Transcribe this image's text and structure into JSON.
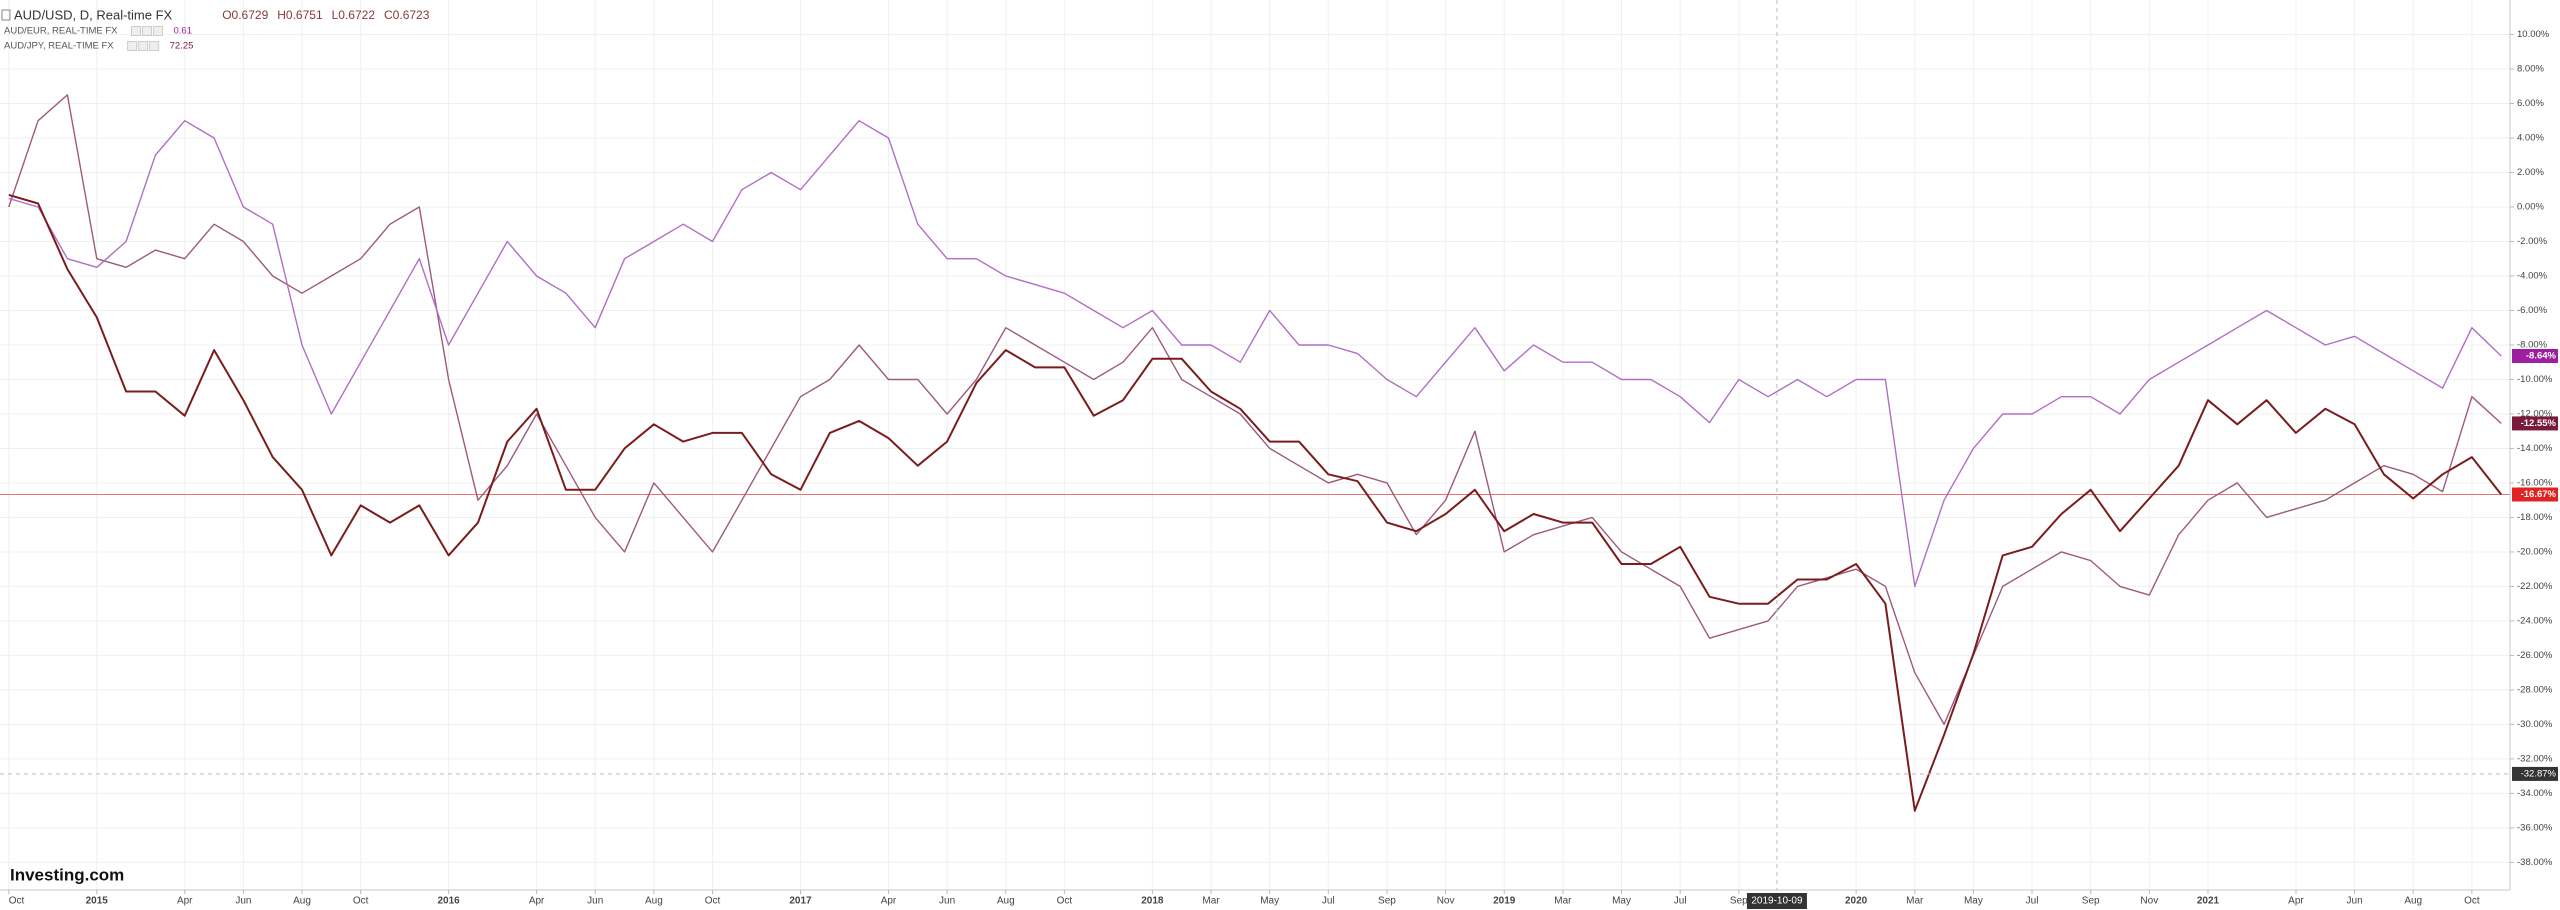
{
  "chart_data": {
    "type": "line",
    "title": "AUD/USD, D, Real-time FX",
    "ohlc": [
      "O0.6729",
      "H0.6751",
      "L0.6722",
      "C0.6723"
    ],
    "brand": "Investing.com",
    "grid": true,
    "xlim": [
      -0.3,
      85.3
    ],
    "ylim": [
      -39.6,
      12
    ],
    "x": [
      0,
      1,
      2,
      3,
      4,
      5,
      6,
      7,
      8,
      9,
      10,
      11,
      12,
      13,
      14,
      15,
      16,
      17,
      18,
      19,
      20,
      21,
      22,
      23,
      24,
      25,
      26,
      27,
      28,
      29,
      30,
      31,
      32,
      33,
      34,
      35,
      36,
      37,
      38,
      39,
      40,
      41,
      42,
      43,
      44,
      45,
      46,
      47,
      48,
      49,
      50,
      51,
      52,
      53,
      54,
      55,
      56,
      57,
      58,
      59,
      60,
      61,
      62,
      63,
      64,
      65,
      66,
      67,
      68,
      69,
      70,
      71,
      72,
      73,
      74,
      75,
      76,
      77,
      78,
      79,
      80,
      81,
      82,
      83,
      84,
      85
    ],
    "xticks": [
      {
        "value": 0,
        "label": "Oct"
      },
      {
        "value": 3,
        "label": "2015"
      },
      {
        "value": 6,
        "label": "Apr"
      },
      {
        "value": 8,
        "label": "Jun"
      },
      {
        "value": 10,
        "label": "Aug"
      },
      {
        "value": 12,
        "label": "Oct"
      },
      {
        "value": 15,
        "label": "2016"
      },
      {
        "value": 18,
        "label": "Apr"
      },
      {
        "value": 20,
        "label": "Jun"
      },
      {
        "value": 22,
        "label": "Aug"
      },
      {
        "value": 24,
        "label": "Oct"
      },
      {
        "value": 27,
        "label": "2017"
      },
      {
        "value": 30,
        "label": "Apr"
      },
      {
        "value": 32,
        "label": "Jun"
      },
      {
        "value": 34,
        "label": "Aug"
      },
      {
        "value": 36,
        "label": "Oct"
      },
      {
        "value": 39,
        "label": "2018"
      },
      {
        "value": 41,
        "label": "Mar"
      },
      {
        "value": 43,
        "label": "May"
      },
      {
        "value": 45,
        "label": "Jul"
      },
      {
        "value": 47,
        "label": "Sep"
      },
      {
        "value": 49,
        "label": "Nov"
      },
      {
        "value": 51,
        "label": "2019"
      },
      {
        "value": 53,
        "label": "Mar"
      },
      {
        "value": 55,
        "label": "May"
      },
      {
        "value": 57,
        "label": "Jul"
      },
      {
        "value": 59,
        "label": "Sep"
      },
      {
        "value": 63,
        "label": "2020"
      },
      {
        "value": 65,
        "label": "Mar"
      },
      {
        "value": 67,
        "label": "May"
      },
      {
        "value": 69,
        "label": "Jul"
      },
      {
        "value": 71,
        "label": "Sep"
      },
      {
        "value": 73,
        "label": "Nov"
      },
      {
        "value": 75,
        "label": "2021"
      },
      {
        "value": 78,
        "label": "Apr"
      },
      {
        "value": 80,
        "label": "Jun"
      },
      {
        "value": 82,
        "label": "Aug"
      },
      {
        "value": 84,
        "label": "Oct"
      }
    ],
    "yticks": [
      {
        "value": 10,
        "label": "10.00%"
      },
      {
        "value": 8,
        "label": "8.00%"
      },
      {
        "value": 6,
        "label": "6.00%"
      },
      {
        "value": 4,
        "label": "4.00%"
      },
      {
        "value": 2,
        "label": "2.00%"
      },
      {
        "value": 0,
        "label": "0.00%"
      },
      {
        "value": -2,
        "label": "-2.00%"
      },
      {
        "value": -4,
        "label": "-4.00%"
      },
      {
        "value": -6,
        "label": "-6.00%"
      },
      {
        "value": -8,
        "label": "-8.00%"
      },
      {
        "value": -10,
        "label": "-10.00%"
      },
      {
        "value": -12,
        "label": "-12.00%"
      },
      {
        "value": -14,
        "label": "-14.00%"
      },
      {
        "value": -16,
        "label": "-16.00%"
      },
      {
        "value": -18,
        "label": "-18.00%"
      },
      {
        "value": -20,
        "label": "-20.00%"
      },
      {
        "value": -22,
        "label": "-22.00%"
      },
      {
        "value": -24,
        "label": "-24.00%"
      },
      {
        "value": -26,
        "label": "-26.00%"
      },
      {
        "value": -28,
        "label": "-28.00%"
      },
      {
        "value": -30,
        "label": "-30.00%"
      },
      {
        "value": -32,
        "label": "-32.00%"
      },
      {
        "value": -34,
        "label": "-34.00%"
      },
      {
        "value": -36,
        "label": "-36.00%"
      },
      {
        "value": -38,
        "label": "-38.00%"
      }
    ],
    "crosshair": {
      "x": {
        "value": 60.3,
        "label": "2019-10-09"
      },
      "y": {
        "value": -32.87,
        "label": "-32.87%"
      }
    },
    "series": [
      {
        "name": "AUD/USD, D, Real-time FX",
        "color": "#7b1c1c",
        "label_color": "#e02424",
        "last_label": "-16.67%",
        "values": [
          0.7,
          0.2,
          -3.6,
          -6.4,
          -10.7,
          -10.7,
          -12.1,
          -8.3,
          -11.2,
          -14.5,
          -16.4,
          -20.2,
          -17.3,
          -18.3,
          -17.3,
          -20.2,
          -18.3,
          -13.6,
          -11.7,
          -16.4,
          -16.4,
          -14.0,
          -12.6,
          -13.6,
          -13.1,
          -13.1,
          -15.5,
          -16.4,
          -13.1,
          -12.4,
          -13.4,
          -15.0,
          -13.6,
          -10.2,
          -8.3,
          -9.3,
          -9.3,
          -12.1,
          -11.2,
          -8.8,
          -8.8,
          -10.7,
          -11.7,
          -13.6,
          -13.6,
          -15.5,
          -15.9,
          -18.3,
          -18.8,
          -17.8,
          -16.4,
          -18.8,
          -17.8,
          -18.3,
          -18.3,
          -20.7,
          -20.7,
          -19.7,
          -22.6,
          -23.0,
          -23.0,
          -21.6,
          -21.6,
          -20.7,
          -23.0,
          -35.0,
          -30.6,
          -25.9,
          -20.2,
          -19.7,
          -17.8,
          -16.4,
          -18.8,
          -16.9,
          -15.0,
          -11.2,
          -12.6,
          -11.2,
          -13.1,
          -11.7,
          -12.6,
          -15.5,
          -16.9,
          -15.5,
          -14.5,
          -16.67
        ]
      },
      {
        "name": "AUD/EUR, REAL-TIME FX",
        "quote": "0.61",
        "color": "#b06fc4",
        "label_color": "#9b1fa0",
        "last_label": "-8.64%",
        "values": [
          0.5,
          0,
          -3,
          -3.5,
          -2,
          3,
          5,
          4,
          0,
          -1,
          -8,
          -12,
          -9,
          -6,
          -3,
          -8,
          -5,
          -2,
          -4,
          -5,
          -7,
          -3,
          -2,
          -1,
          -2,
          1,
          2,
          1,
          3,
          5,
          4,
          -1,
          -3,
          -3,
          -4,
          -4.5,
          -5,
          -6,
          -7,
          -6,
          -8,
          -8,
          -9,
          -6,
          -8,
          -8,
          -8.5,
          -10,
          -11,
          -9,
          -7,
          -9.5,
          -8,
          -9,
          -9,
          -10,
          -10,
          -11,
          -12.5,
          -10,
          -11,
          -10,
          -11,
          -10,
          -10,
          -22,
          -17,
          -14,
          -12,
          -12,
          -11,
          -11,
          -12,
          -10,
          -9,
          -8,
          -7,
          -6,
          -7,
          -8,
          -7.5,
          -8.5,
          -9.5,
          -10.5,
          -7,
          -8.64
        ]
      },
      {
        "name": "AUD/JPY, REAL-TIME FX",
        "quote": "72.25",
        "color": "#9e5a7e",
        "label_color": "#7a1a3a",
        "last_label": "-12.55%",
        "values": [
          0,
          5,
          6.5,
          -3,
          -3.5,
          -2.5,
          -3,
          -1,
          -2,
          -4,
          -5,
          -4,
          -3,
          -1,
          0,
          -10,
          -17,
          -15,
          -12,
          -15,
          -18,
          -20,
          -16,
          -18,
          -20,
          -17,
          -14,
          -11,
          -10,
          -8,
          -10,
          -10,
          -12,
          -10,
          -7,
          -8,
          -9,
          -10,
          -9,
          -7,
          -10,
          -11,
          -12,
          -14,
          -15,
          -16,
          -15.5,
          -16,
          -19,
          -17,
          -13,
          -20,
          -19,
          -18.5,
          -18,
          -20,
          -21,
          -22,
          -25,
          -24.5,
          -24,
          -22,
          -21.5,
          -21,
          -22,
          -27,
          -30,
          -26,
          -22,
          -21,
          -20,
          -20.5,
          -22,
          -22.5,
          -19,
          -17,
          -16,
          -18,
          -17.5,
          -17,
          -16,
          -15,
          -15.5,
          -16.5,
          -11,
          -12.55
        ]
      }
    ]
  }
}
